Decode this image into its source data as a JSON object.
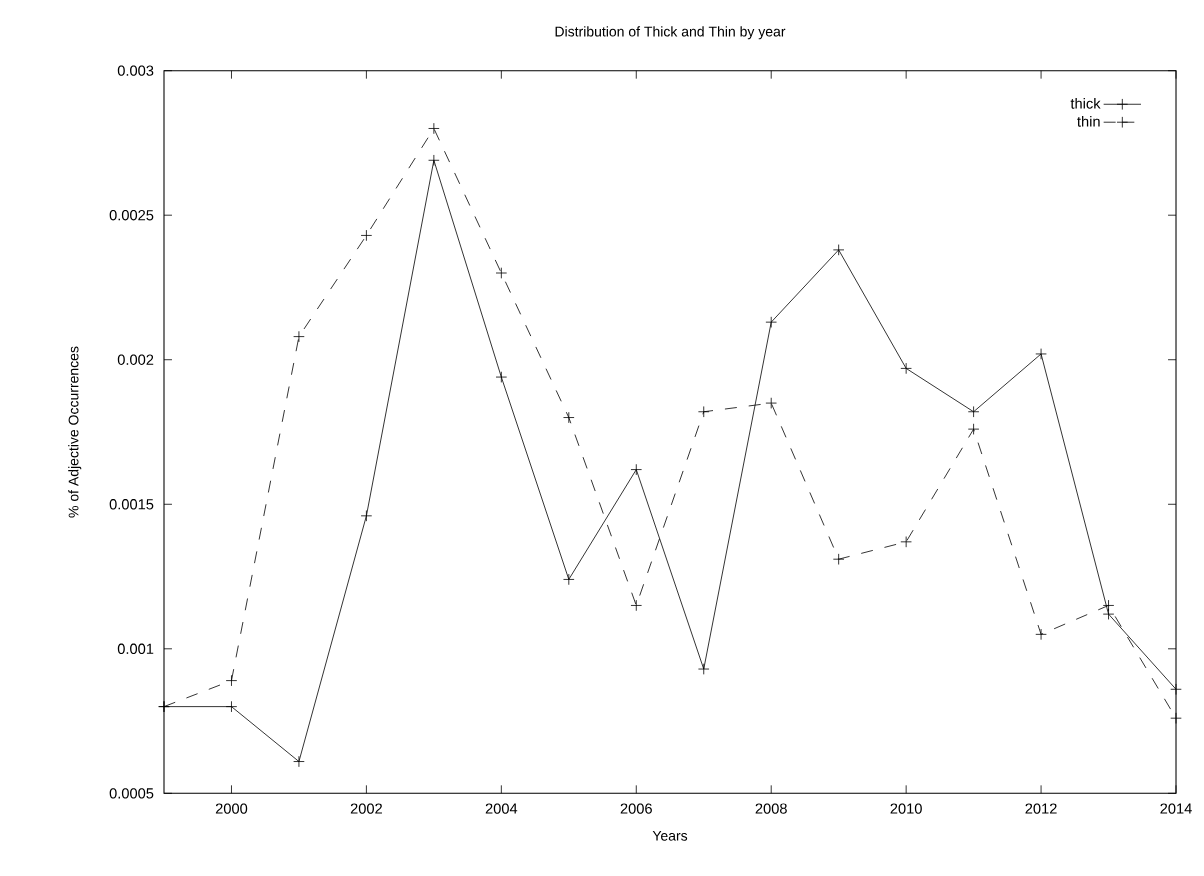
{
  "chart_data": {
    "type": "line",
    "title": "Distribution of Thick and Thin by year",
    "xlabel": "Years",
    "ylabel": "% of Adjective Occurrences",
    "x": [
      1999,
      2000,
      2001,
      2002,
      2003,
      2004,
      2005,
      2006,
      2007,
      2008,
      2009,
      2010,
      2011,
      2012,
      2013,
      2014
    ],
    "series": [
      {
        "name": "thick",
        "color": "#000000",
        "line_style": "solid",
        "values": [
          0.0008,
          0.0008,
          0.00061,
          0.00146,
          0.00269,
          0.00194,
          0.00124,
          0.00162,
          0.00093,
          0.00213,
          0.00238,
          0.00197,
          0.00182,
          0.00202,
          0.00112,
          0.00086
        ]
      },
      {
        "name": "thin",
        "color": "#000000",
        "line_style": "dashed",
        "values": [
          0.0008,
          0.00089,
          0.00208,
          0.00243,
          0.0028,
          0.0023,
          0.0018,
          0.00115,
          0.00182,
          0.00185,
          0.00131,
          0.00137,
          0.00176,
          0.00105,
          0.00115,
          0.00076
        ]
      }
    ],
    "xlim": [
      1999,
      2014
    ],
    "ylim": [
      0.0005,
      0.003
    ],
    "xticks": [
      2000,
      2002,
      2004,
      2006,
      2008,
      2010,
      2012,
      2014
    ],
    "yticks": [
      0.0005,
      0.001,
      0.0015,
      0.002,
      0.0025,
      0.003
    ],
    "marker": "cross",
    "legend": "top right",
    "grid": false
  }
}
